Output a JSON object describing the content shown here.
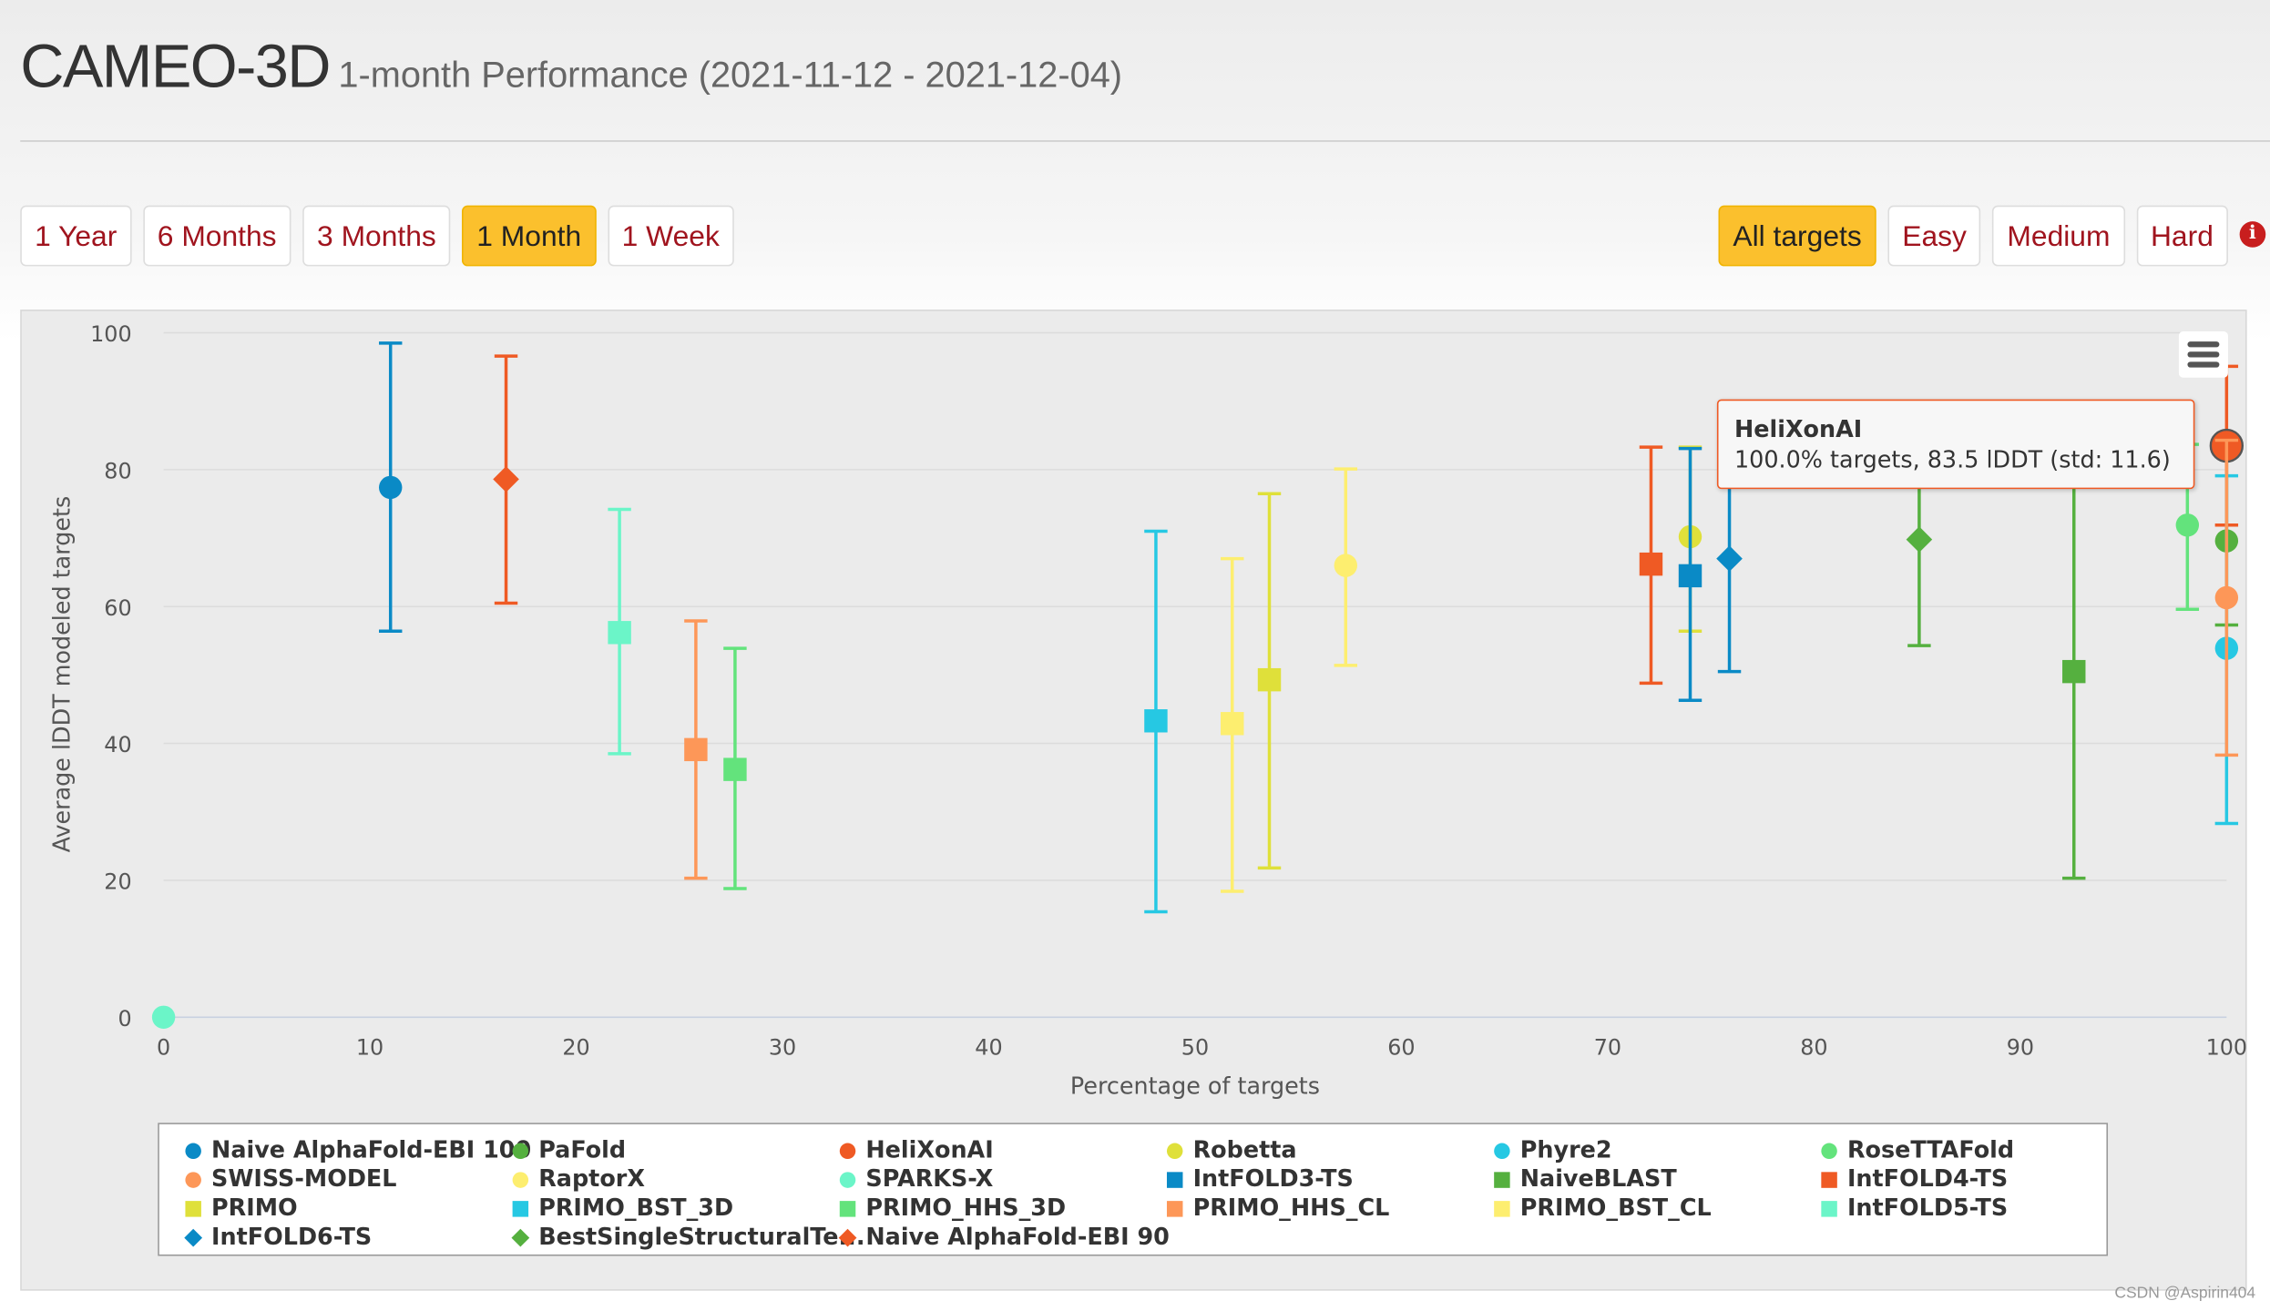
{
  "header": {
    "title": "CAMEO-3D",
    "subtitle": "1-month Performance (2021-11-12 - 2021-12-04)"
  },
  "period_buttons": [
    {
      "label": "1 Year",
      "active": false
    },
    {
      "label": "6 Months",
      "active": false
    },
    {
      "label": "3 Months",
      "active": false
    },
    {
      "label": "1 Month",
      "active": true
    },
    {
      "label": "1 Week",
      "active": false
    }
  ],
  "difficulty_buttons": [
    {
      "label": "All targets",
      "active": true
    },
    {
      "label": "Easy",
      "active": false
    },
    {
      "label": "Medium",
      "active": false
    },
    {
      "label": "Hard",
      "active": false
    }
  ],
  "info_icon": "info-circle-icon",
  "menu_icon": "hamburger-menu-icon",
  "tooltip": {
    "title": "HeliXonAI",
    "text": "100.0% targets, 83.5 lDDT (std: 11.6)"
  },
  "watermark": "CSDN @Aspirin404",
  "chart_data": {
    "type": "scatter",
    "xlabel": "Percentage of targets",
    "ylabel": "Average lDDT modeled targets",
    "xlim": [
      0,
      100
    ],
    "ylim": [
      0,
      100
    ],
    "xticks": [
      0,
      10,
      20,
      30,
      40,
      50,
      60,
      70,
      80,
      90,
      100
    ],
    "yticks": [
      0,
      20,
      40,
      60,
      80,
      100
    ],
    "grid": true,
    "legend_position": "bottom",
    "series": [
      {
        "name": "Naive AlphaFold-EBI 100",
        "color": "#0a8ac6",
        "marker": "circle",
        "x": 11.0,
        "y": 77.4,
        "low": 56.4,
        "high": 98.5
      },
      {
        "name": "PaFold",
        "color": "#55b03f",
        "marker": "circle",
        "x": 100,
        "y": 69.6,
        "low": 57.3,
        "high": 81.9
      },
      {
        "name": "HeliXonAI",
        "color": "#ef5a24",
        "marker": "circle",
        "x": 100,
        "y": 83.5,
        "low": 71.9,
        "high": 95.1
      },
      {
        "name": "Robetta",
        "color": "#dfe03a",
        "marker": "circle",
        "x": 74.0,
        "y": 70.2,
        "low": 56.4,
        "high": 83.3
      },
      {
        "name": "Phyre2",
        "color": "#26c8e3",
        "marker": "circle",
        "x": 100,
        "y": 53.9,
        "low": 28.3,
        "high": 79.1
      },
      {
        "name": "RoseTTAFold",
        "color": "#63e37c",
        "marker": "circle",
        "x": 98.1,
        "y": 71.9,
        "low": 59.6,
        "high": 83.7
      },
      {
        "name": "SWISS-MODEL",
        "color": "#fd9758",
        "marker": "circle",
        "x": 100,
        "y": 61.3,
        "low": 38.3,
        "high": 84.3
      },
      {
        "name": "RaptorX",
        "color": "#fdee6f",
        "marker": "circle",
        "x": 57.3,
        "y": 66.0,
        "low": 51.4,
        "high": 80.1
      },
      {
        "name": "SPARKS-X",
        "color": "#6bf5c8",
        "marker": "circle",
        "x": 0,
        "y": 0,
        "low": null,
        "high": null
      },
      {
        "name": "IntFOLD3-TS",
        "color": "#0a8ac6",
        "marker": "square",
        "x": 74.0,
        "y": 64.5,
        "low": 46.3,
        "high": 83.1
      },
      {
        "name": "NaiveBLAST",
        "color": "#55b03f",
        "marker": "square",
        "x": 92.6,
        "y": 50.5,
        "low": 20.3,
        "high": 80.8
      },
      {
        "name": "IntFOLD4-TS",
        "color": "#ef5a24",
        "marker": "square",
        "x": 72.1,
        "y": 66.2,
        "low": 48.8,
        "high": 83.3
      },
      {
        "name": "PRIMO",
        "color": "#dfe03a",
        "marker": "square",
        "x": 53.6,
        "y": 49.3,
        "low": 21.8,
        "high": 76.5
      },
      {
        "name": "PRIMO_BST_3D",
        "color": "#26c8e3",
        "marker": "square",
        "x": 48.1,
        "y": 43.3,
        "low": 15.4,
        "high": 71.0
      },
      {
        "name": "PRIMO_HHS_3D",
        "color": "#63e37c",
        "marker": "square",
        "x": 27.7,
        "y": 36.2,
        "low": 18.8,
        "high": 53.9
      },
      {
        "name": "PRIMO_HHS_CL",
        "color": "#fd9758",
        "marker": "square",
        "x": 25.8,
        "y": 39.1,
        "low": 20.3,
        "high": 57.9
      },
      {
        "name": "PRIMO_BST_CL",
        "color": "#fdee6f",
        "marker": "square",
        "x": 51.8,
        "y": 42.9,
        "low": 18.4,
        "high": 67.0
      },
      {
        "name": "IntFOLD5-TS",
        "color": "#6bf5c8",
        "marker": "square",
        "x": 22.1,
        "y": 56.2,
        "low": 38.5,
        "high": 74.2
      },
      {
        "name": "IntFOLD6-TS",
        "color": "#0a8ac6",
        "marker": "diamond",
        "x": 75.9,
        "y": 67.0,
        "low": 50.5,
        "high": 83.1
      },
      {
        "name": "BestSingleStructuralTe...",
        "color": "#55b03f",
        "marker": "diamond",
        "x": 85.1,
        "y": 69.8,
        "low": 54.3,
        "high": 85.2
      },
      {
        "name": "Naive AlphaFold-EBI 90",
        "color": "#ef5a24",
        "marker": "diamond",
        "x": 16.6,
        "y": 78.6,
        "low": 60.5,
        "high": 96.6
      }
    ]
  }
}
